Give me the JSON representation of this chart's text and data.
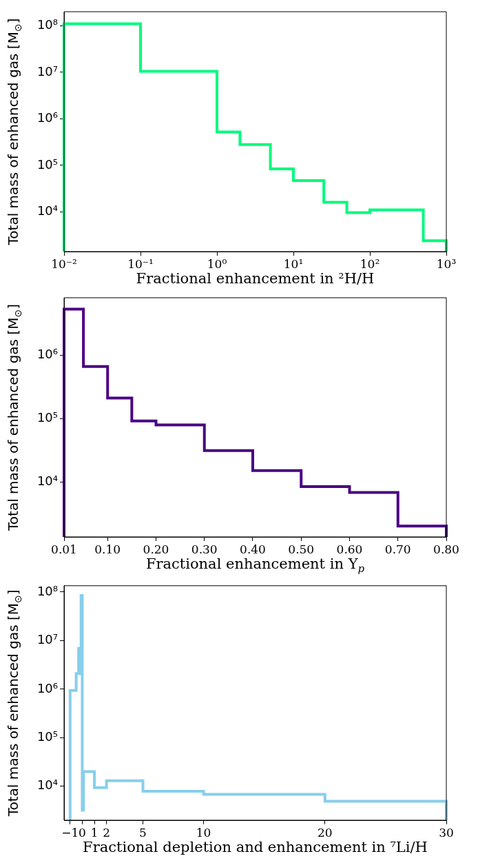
{
  "chart_data": [
    {
      "type": "histogram",
      "xlabel": "Fractional enhancement in ²H/H",
      "ylabel": "Total mass of enhanced gas [M$_{⊙}$]",
      "color": "#00fa7e",
      "log": "xy",
      "grid": false,
      "bins": [
        0.01,
        0.1,
        1,
        2,
        5,
        10,
        25,
        50,
        100,
        500,
        1000
      ],
      "values": [
        110000000,
        10500000,
        520000,
        280000,
        84000,
        47000,
        16000,
        9600,
        11000,
        2400
      ],
      "xlim": [
        0.01,
        1000
      ],
      "ylim": [
        1400,
        200000000
      ],
      "xticks": [
        {
          "value": 0.01,
          "label": "10⁻²"
        },
        {
          "value": 0.1,
          "label": "10⁻¹"
        },
        {
          "value": 1,
          "label": "10⁰"
        },
        {
          "value": 10,
          "label": "10¹"
        },
        {
          "value": 100,
          "label": "10²"
        },
        {
          "value": 1000,
          "label": "10³"
        }
      ],
      "yticks": [
        {
          "value": 10000,
          "label": "10⁴"
        },
        {
          "value": 100000,
          "label": "10⁵"
        },
        {
          "value": 1000000,
          "label": "10⁶"
        },
        {
          "value": 10000000,
          "label": "10⁷"
        },
        {
          "value": 100000000,
          "label": "10⁸"
        }
      ]
    },
    {
      "type": "histogram",
      "xlabel": "Fractional enhancement in Y$_{p}$",
      "ylabel": "Total mass of enhanced gas [M$_{⊙}$]",
      "color": "#4b0082",
      "log": "y",
      "grid": false,
      "bins": [
        0.01,
        0.05,
        0.1,
        0.15,
        0.2,
        0.3,
        0.4,
        0.5,
        0.6,
        0.7,
        0.8
      ],
      "values": [
        5300000,
        660000,
        210000,
        91000,
        79000,
        31000,
        15000,
        8400,
        6800,
        2000
      ],
      "xlim": [
        0.01,
        0.8
      ],
      "ylim": [
        1350,
        8000000
      ],
      "xticks": [
        {
          "value": 0.01,
          "label": "0.01"
        },
        {
          "value": 0.1,
          "label": "0.10"
        },
        {
          "value": 0.2,
          "label": "0.20"
        },
        {
          "value": 0.3,
          "label": "0.30"
        },
        {
          "value": 0.4,
          "label": "0.40"
        },
        {
          "value": 0.5,
          "label": "0.50"
        },
        {
          "value": 0.6,
          "label": "0.60"
        },
        {
          "value": 0.7,
          "label": "0.70"
        },
        {
          "value": 0.8,
          "label": "0.80"
        }
      ],
      "yticks": [
        {
          "value": 10000,
          "label": "10⁴"
        },
        {
          "value": 100000,
          "label": "10⁵"
        },
        {
          "value": 1000000,
          "label": "10⁶"
        }
      ]
    },
    {
      "type": "histogram",
      "xlabel": "Fractional depletion and enhancement in ⁷Li/H",
      "ylabel": "Total mass of enhanced gas [M$_{⊙}$]",
      "color": "#87ceeb",
      "log": "y",
      "grid": false,
      "bins": [
        -1,
        -0.5,
        -0.3,
        -0.2,
        -0.1,
        0,
        0.1,
        1,
        2,
        5,
        10,
        20,
        30
      ],
      "values": [
        940000,
        2100000,
        6900000,
        2100000,
        85000000,
        3200,
        20000,
        9400,
        13000,
        7900,
        6800,
        4900
      ],
      "xlim": [
        -1.5,
        30
      ],
      "ylim": [
        2000,
        135000000
      ],
      "xticks": [
        {
          "value": -1,
          "label": "−1"
        },
        0,
        1,
        2,
        5,
        10,
        20,
        30
      ],
      "yticks": [
        {
          "value": 10000,
          "label": "10⁴"
        },
        {
          "value": 100000,
          "label": "10⁵"
        },
        {
          "value": 1000000,
          "label": "10⁶"
        },
        {
          "value": 10000000,
          "label": "10⁷"
        },
        {
          "value": 100000000,
          "label": "10⁸"
        }
      ]
    }
  ]
}
